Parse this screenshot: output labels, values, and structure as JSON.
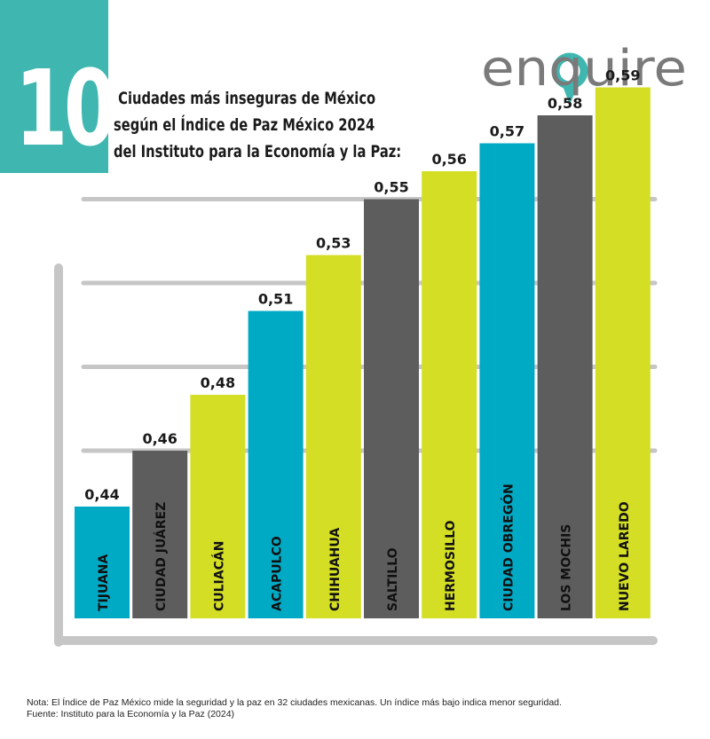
{
  "badge": {
    "number": "10"
  },
  "title": {
    "line1": "Ciudades más inseguras de México",
    "line2": "según el Índice de Paz México 2024",
    "line3": "del Instituto para la Economía y la Paz:"
  },
  "logo": {
    "text": "enquire"
  },
  "colors": {
    "teal": "#00aac5",
    "gray": "#5d5d5d",
    "lime": "#d4de24",
    "badge": "#3fb7b0",
    "axis": "#c6c6c6"
  },
  "chart_data": {
    "type": "bar",
    "title": "",
    "xlabel": "",
    "ylabel": "",
    "ylim": [
      0.35,
      0.6
    ],
    "grid": true,
    "categories": [
      "TIJUANA",
      "CIUDAD JUÁREZ",
      "CULIACÁN",
      "ACAPULCO",
      "CHIHUAHUA",
      "SALTILLO",
      "HERMOSILLO",
      "CIUDAD OBREGÓN",
      "LOS MOCHIS",
      "NUEVO LAREDO"
    ],
    "values": [
      0.44,
      0.46,
      0.48,
      0.51,
      0.53,
      0.55,
      0.56,
      0.57,
      0.58,
      0.59
    ],
    "value_labels": [
      "0,44",
      "0,46",
      "0,48",
      "0,51",
      "0,53",
      "0,55",
      "0,56",
      "0,57",
      "0,58",
      "0,59"
    ],
    "bar_colors": [
      "teal",
      "gray",
      "lime",
      "teal",
      "lime",
      "gray",
      "lime",
      "teal",
      "gray",
      "lime"
    ]
  },
  "footer": {
    "note": "Nota: El Índice de Paz México mide la seguridad y la paz en 32 ciudades mexicanas. Un índice más bajo indica menor seguridad.",
    "source": "Fuente: Instituto para la Economía y la Paz (2024)"
  }
}
